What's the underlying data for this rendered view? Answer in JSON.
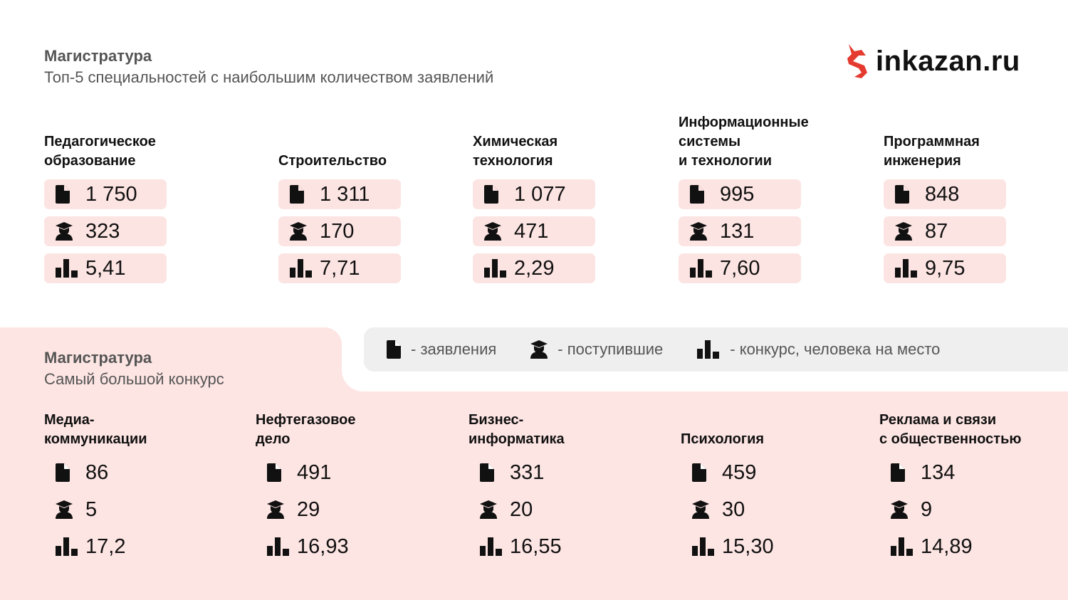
{
  "header": {
    "title": "Магистратура",
    "subtitle": "Топ-5 специальностей с наибольшим количеством заявлений"
  },
  "logo": {
    "text": "inkazan.ru",
    "color": "#e53a2f"
  },
  "top": [
    {
      "name": "Педагогическое\nобразование",
      "applications": "1 750",
      "enrolled": "323",
      "competition": "5,41"
    },
    {
      "name": "Строительство",
      "applications": "1 311",
      "enrolled": "170",
      "competition": "7,71"
    },
    {
      "name": "Химическая\nтехнология",
      "applications": "1 077",
      "enrolled": "471",
      "competition": "2,29"
    },
    {
      "name": "Информационные\nсистемы\nи технологии",
      "applications": "995",
      "enrolled": "131",
      "competition": "7,60"
    },
    {
      "name": "Программная\nинженерия",
      "applications": "848",
      "enrolled": "87",
      "competition": "9,75"
    }
  ],
  "legend": {
    "applications": "- заявления",
    "enrolled": "- поступившие",
    "competition": "- конкурс, человека на место"
  },
  "section2": {
    "title": "Магистратура",
    "subtitle": "Самый большой конкурс"
  },
  "bottom": [
    {
      "name": "Медиа-\nкоммуникации",
      "applications": "86",
      "enrolled": "5",
      "competition": "17,2"
    },
    {
      "name": "Нефтегазовое\nдело",
      "applications": "491",
      "enrolled": "29",
      "competition": "16,93"
    },
    {
      "name": "Бизнес-\nинформатика",
      "applications": "331",
      "enrolled": "20",
      "competition": "16,55"
    },
    {
      "name": "Психология",
      "applications": "459",
      "enrolled": "30",
      "competition": "15,30"
    },
    {
      "name": "Реклама и связи\nс общественностью",
      "applications": "134",
      "enrolled": "9",
      "competition": "14,89"
    }
  ]
}
